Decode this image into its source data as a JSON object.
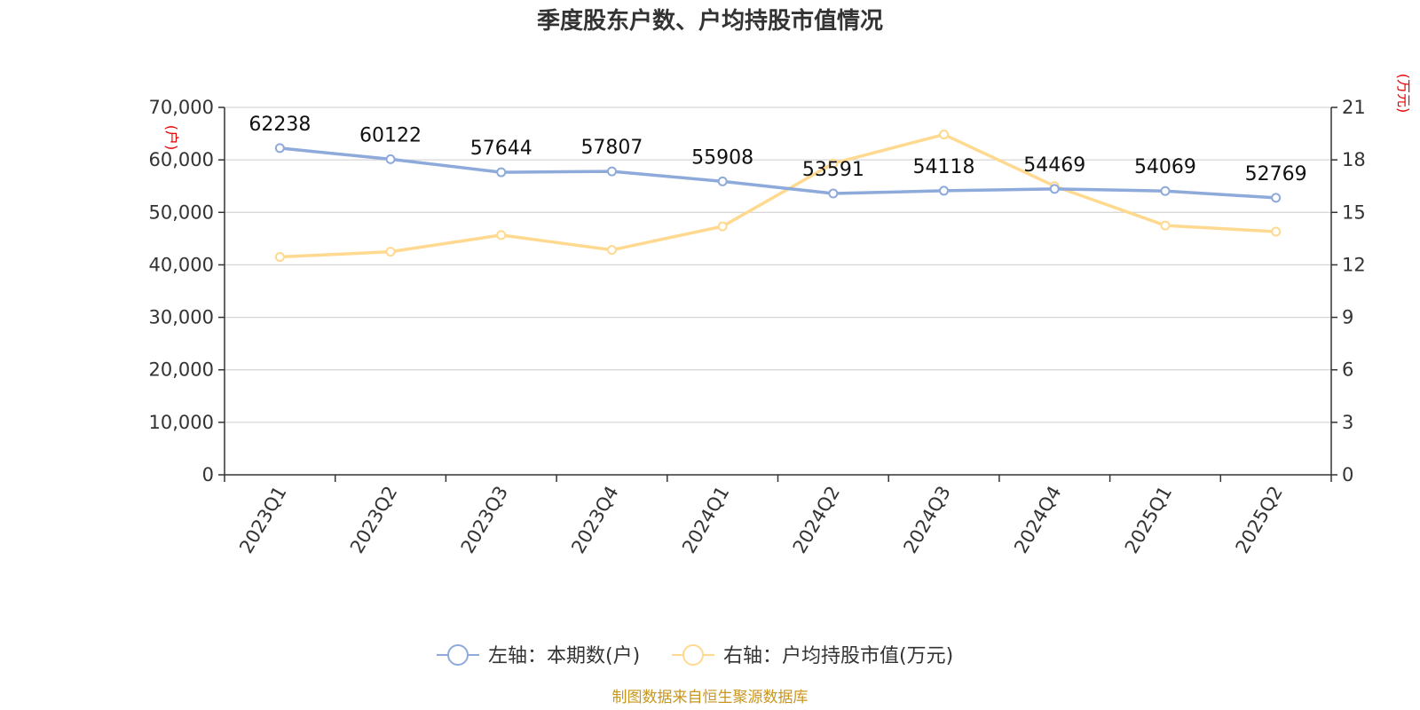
{
  "chart_data": {
    "type": "line",
    "title": "季度股东户数、户均持股市值情况",
    "categories": [
      "2023Q1",
      "2023Q2",
      "2023Q3",
      "2023Q4",
      "2024Q1",
      "2024Q2",
      "2024Q3",
      "2024Q4",
      "2025Q1",
      "2025Q2"
    ],
    "left_axis": {
      "unit": "(户)",
      "ylim": [
        0,
        70000
      ],
      "ticks": [
        0,
        10000,
        20000,
        30000,
        40000,
        50000,
        60000,
        70000
      ],
      "tick_labels": [
        "0",
        "10,000",
        "20,000",
        "30,000",
        "40,000",
        "50,000",
        "60,000",
        "70,000"
      ]
    },
    "right_axis": {
      "unit": "(万元)",
      "ylim": [
        0,
        21
      ],
      "ticks": [
        0,
        3,
        6,
        9,
        12,
        15,
        18,
        21
      ],
      "tick_labels": [
        "0",
        "3",
        "6",
        "9",
        "12",
        "15",
        "18",
        "21"
      ]
    },
    "series": [
      {
        "name": "左轴：本期数(户)",
        "axis": "left",
        "color": "#8eaadb",
        "values": [
          62238,
          60122,
          57644,
          57807,
          55908,
          53591,
          54118,
          54469,
          54069,
          52769
        ],
        "labels": [
          "62238",
          "60122",
          "57644",
          "57807",
          "55908",
          "53591",
          "54118",
          "54469",
          "54069",
          "52769"
        ]
      },
      {
        "name": "右轴：户均持股市值(万元)",
        "axis": "right",
        "color": "#ffd98f",
        "values": [
          12.45,
          12.75,
          13.7,
          12.85,
          14.2,
          17.8,
          19.45,
          16.5,
          14.25,
          13.9
        ]
      }
    ],
    "grid": true,
    "legend_position": "bottom-center",
    "source_note": "制图数据来自恒生聚源数据库"
  }
}
